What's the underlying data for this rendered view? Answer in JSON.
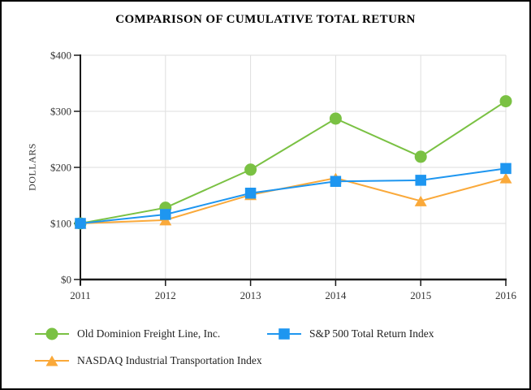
{
  "title": "COMPARISON OF CUMULATIVE TOTAL RETURN",
  "colors": {
    "odfl_green": "#7AC143",
    "sp500_blue": "#1E96F0",
    "nasdaq_orange": "#FAA93A",
    "gridline": "#DEDEDE",
    "axis": "#1A1A1A",
    "tick_text": "#333333"
  },
  "chart_data": {
    "type": "line",
    "title": "COMPARISON OF CUMULATIVE TOTAL RETURN",
    "xlabel": "",
    "ylabel": "DOLLARS",
    "x": [
      "2011",
      "2012",
      "2013",
      "2014",
      "2015",
      "2016"
    ],
    "y_tick_labels": [
      "$0",
      "$100",
      "$200",
      "$300",
      "$400"
    ],
    "y_tick_values": [
      0,
      100,
      200,
      300,
      400
    ],
    "ylim": [
      0,
      400
    ],
    "grid": true,
    "legend_position": "bottom",
    "series": [
      {
        "name": "Old Dominion Freight Line, Inc.",
        "marker": "circle",
        "color": "#7AC143",
        "values": [
          100,
          128,
          196,
          287,
          219,
          318
        ]
      },
      {
        "name": "S&P 500 Total Return Index",
        "marker": "square",
        "color": "#1E96F0",
        "values": [
          100,
          116,
          154,
          175,
          177,
          198
        ]
      },
      {
        "name": "NASDAQ Industrial Transportation Index",
        "marker": "triangle",
        "color": "#FAA93A",
        "values": [
          100,
          106,
          151,
          181,
          140,
          181
        ]
      }
    ]
  }
}
